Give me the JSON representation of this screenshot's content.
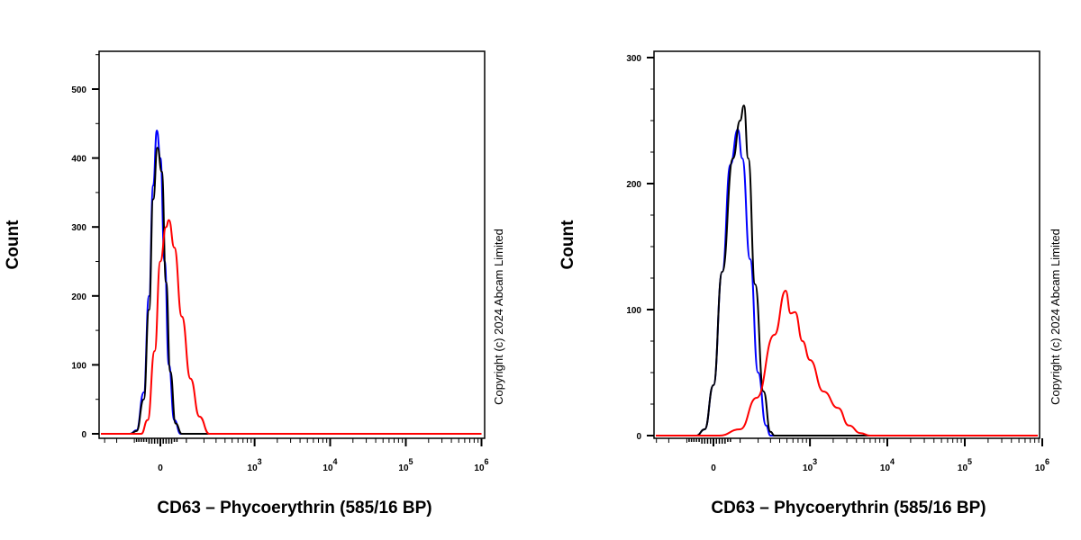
{
  "chart_data": [
    {
      "type": "line",
      "xlabel": "CD63 – Phycoerythrin (585/16 BP)",
      "ylabel": "Count",
      "xscale": "biexponential",
      "x_ticks": [
        {
          "value": 0,
          "label": "0"
        },
        {
          "value": 1000,
          "label": "10",
          "exp": "3"
        },
        {
          "value": 10000,
          "label": "10",
          "exp": "4"
        },
        {
          "value": 100000,
          "label": "10",
          "exp": "5"
        },
        {
          "value": 1000000,
          "label": "10",
          "exp": "6"
        }
      ],
      "ylim": [
        0,
        555
      ],
      "y_ticks": [
        0,
        100,
        200,
        300,
        400,
        500
      ],
      "watermark": "Copyright (c) 2024 Abcam Limited",
      "series": [
        {
          "color": "#0000ff",
          "points": [
            [
              -120,
              0
            ],
            [
              -90,
              5
            ],
            [
              -60,
              60
            ],
            [
              -40,
              200
            ],
            [
              -25,
              360
            ],
            [
              -12,
              440
            ],
            [
              0,
              400
            ],
            [
              15,
              250
            ],
            [
              30,
              100
            ],
            [
              50,
              20
            ],
            [
              75,
              0
            ]
          ]
        },
        {
          "color": "#000000",
          "points": [
            [
              -120,
              0
            ],
            [
              -90,
              4
            ],
            [
              -60,
              50
            ],
            [
              -40,
              180
            ],
            [
              -25,
              340
            ],
            [
              -10,
              415
            ],
            [
              5,
              380
            ],
            [
              20,
              220
            ],
            [
              35,
              90
            ],
            [
              55,
              15
            ],
            [
              80,
              0
            ]
          ]
        },
        {
          "color": "#ff0000",
          "points": [
            [
              -70,
              0
            ],
            [
              -45,
              20
            ],
            [
              -20,
              120
            ],
            [
              0,
              250
            ],
            [
              20,
              300
            ],
            [
              30,
              310
            ],
            [
              50,
              270
            ],
            [
              80,
              170
            ],
            [
              120,
              80
            ],
            [
              170,
              25
            ],
            [
              240,
              0
            ]
          ]
        }
      ]
    },
    {
      "type": "line",
      "xlabel": "CD63 – Phycoerythrin (585/16 BP)",
      "ylabel": "Count",
      "xscale": "biexponential",
      "x_ticks": [
        {
          "value": 0,
          "label": "0"
        },
        {
          "value": 1000,
          "label": "10",
          "exp": "3"
        },
        {
          "value": 10000,
          "label": "10",
          "exp": "4"
        },
        {
          "value": 100000,
          "label": "10",
          "exp": "5"
        },
        {
          "value": 1000000,
          "label": "10",
          "exp": "6"
        }
      ],
      "ylim": [
        0,
        300
      ],
      "y_ticks": [
        0,
        100,
        200,
        300
      ],
      "watermark": "Copyright (c) 2024 Abcam Limited",
      "series": [
        {
          "color": "#0000ff",
          "points": [
            [
              -60,
              0
            ],
            [
              -30,
              5
            ],
            [
              0,
              40
            ],
            [
              30,
              130
            ],
            [
              60,
              215
            ],
            [
              90,
              243
            ],
            [
              110,
              220
            ],
            [
              150,
              140
            ],
            [
              200,
              50
            ],
            [
              260,
              8
            ],
            [
              300,
              0
            ]
          ]
        },
        {
          "color": "#000000",
          "points": [
            [
              -60,
              0
            ],
            [
              -30,
              5
            ],
            [
              0,
              40
            ],
            [
              30,
              130
            ],
            [
              70,
              220
            ],
            [
              100,
              250
            ],
            [
              118,
              262
            ],
            [
              140,
              220
            ],
            [
              180,
              120
            ],
            [
              240,
              35
            ],
            [
              300,
              3
            ],
            [
              340,
              0
            ]
          ]
        },
        {
          "color": "#ff0000",
          "points": [
            [
              20,
              0
            ],
            [
              100,
              5
            ],
            [
              190,
              30
            ],
            [
              340,
              80
            ],
            [
              480,
              115
            ],
            [
              560,
              97
            ],
            [
              640,
              98
            ],
            [
              800,
              75
            ],
            [
              1000,
              60
            ],
            [
              1500,
              35
            ],
            [
              2300,
              22
            ],
            [
              3200,
              8
            ],
            [
              4500,
              2
            ],
            [
              6000,
              0
            ]
          ]
        }
      ]
    }
  ]
}
